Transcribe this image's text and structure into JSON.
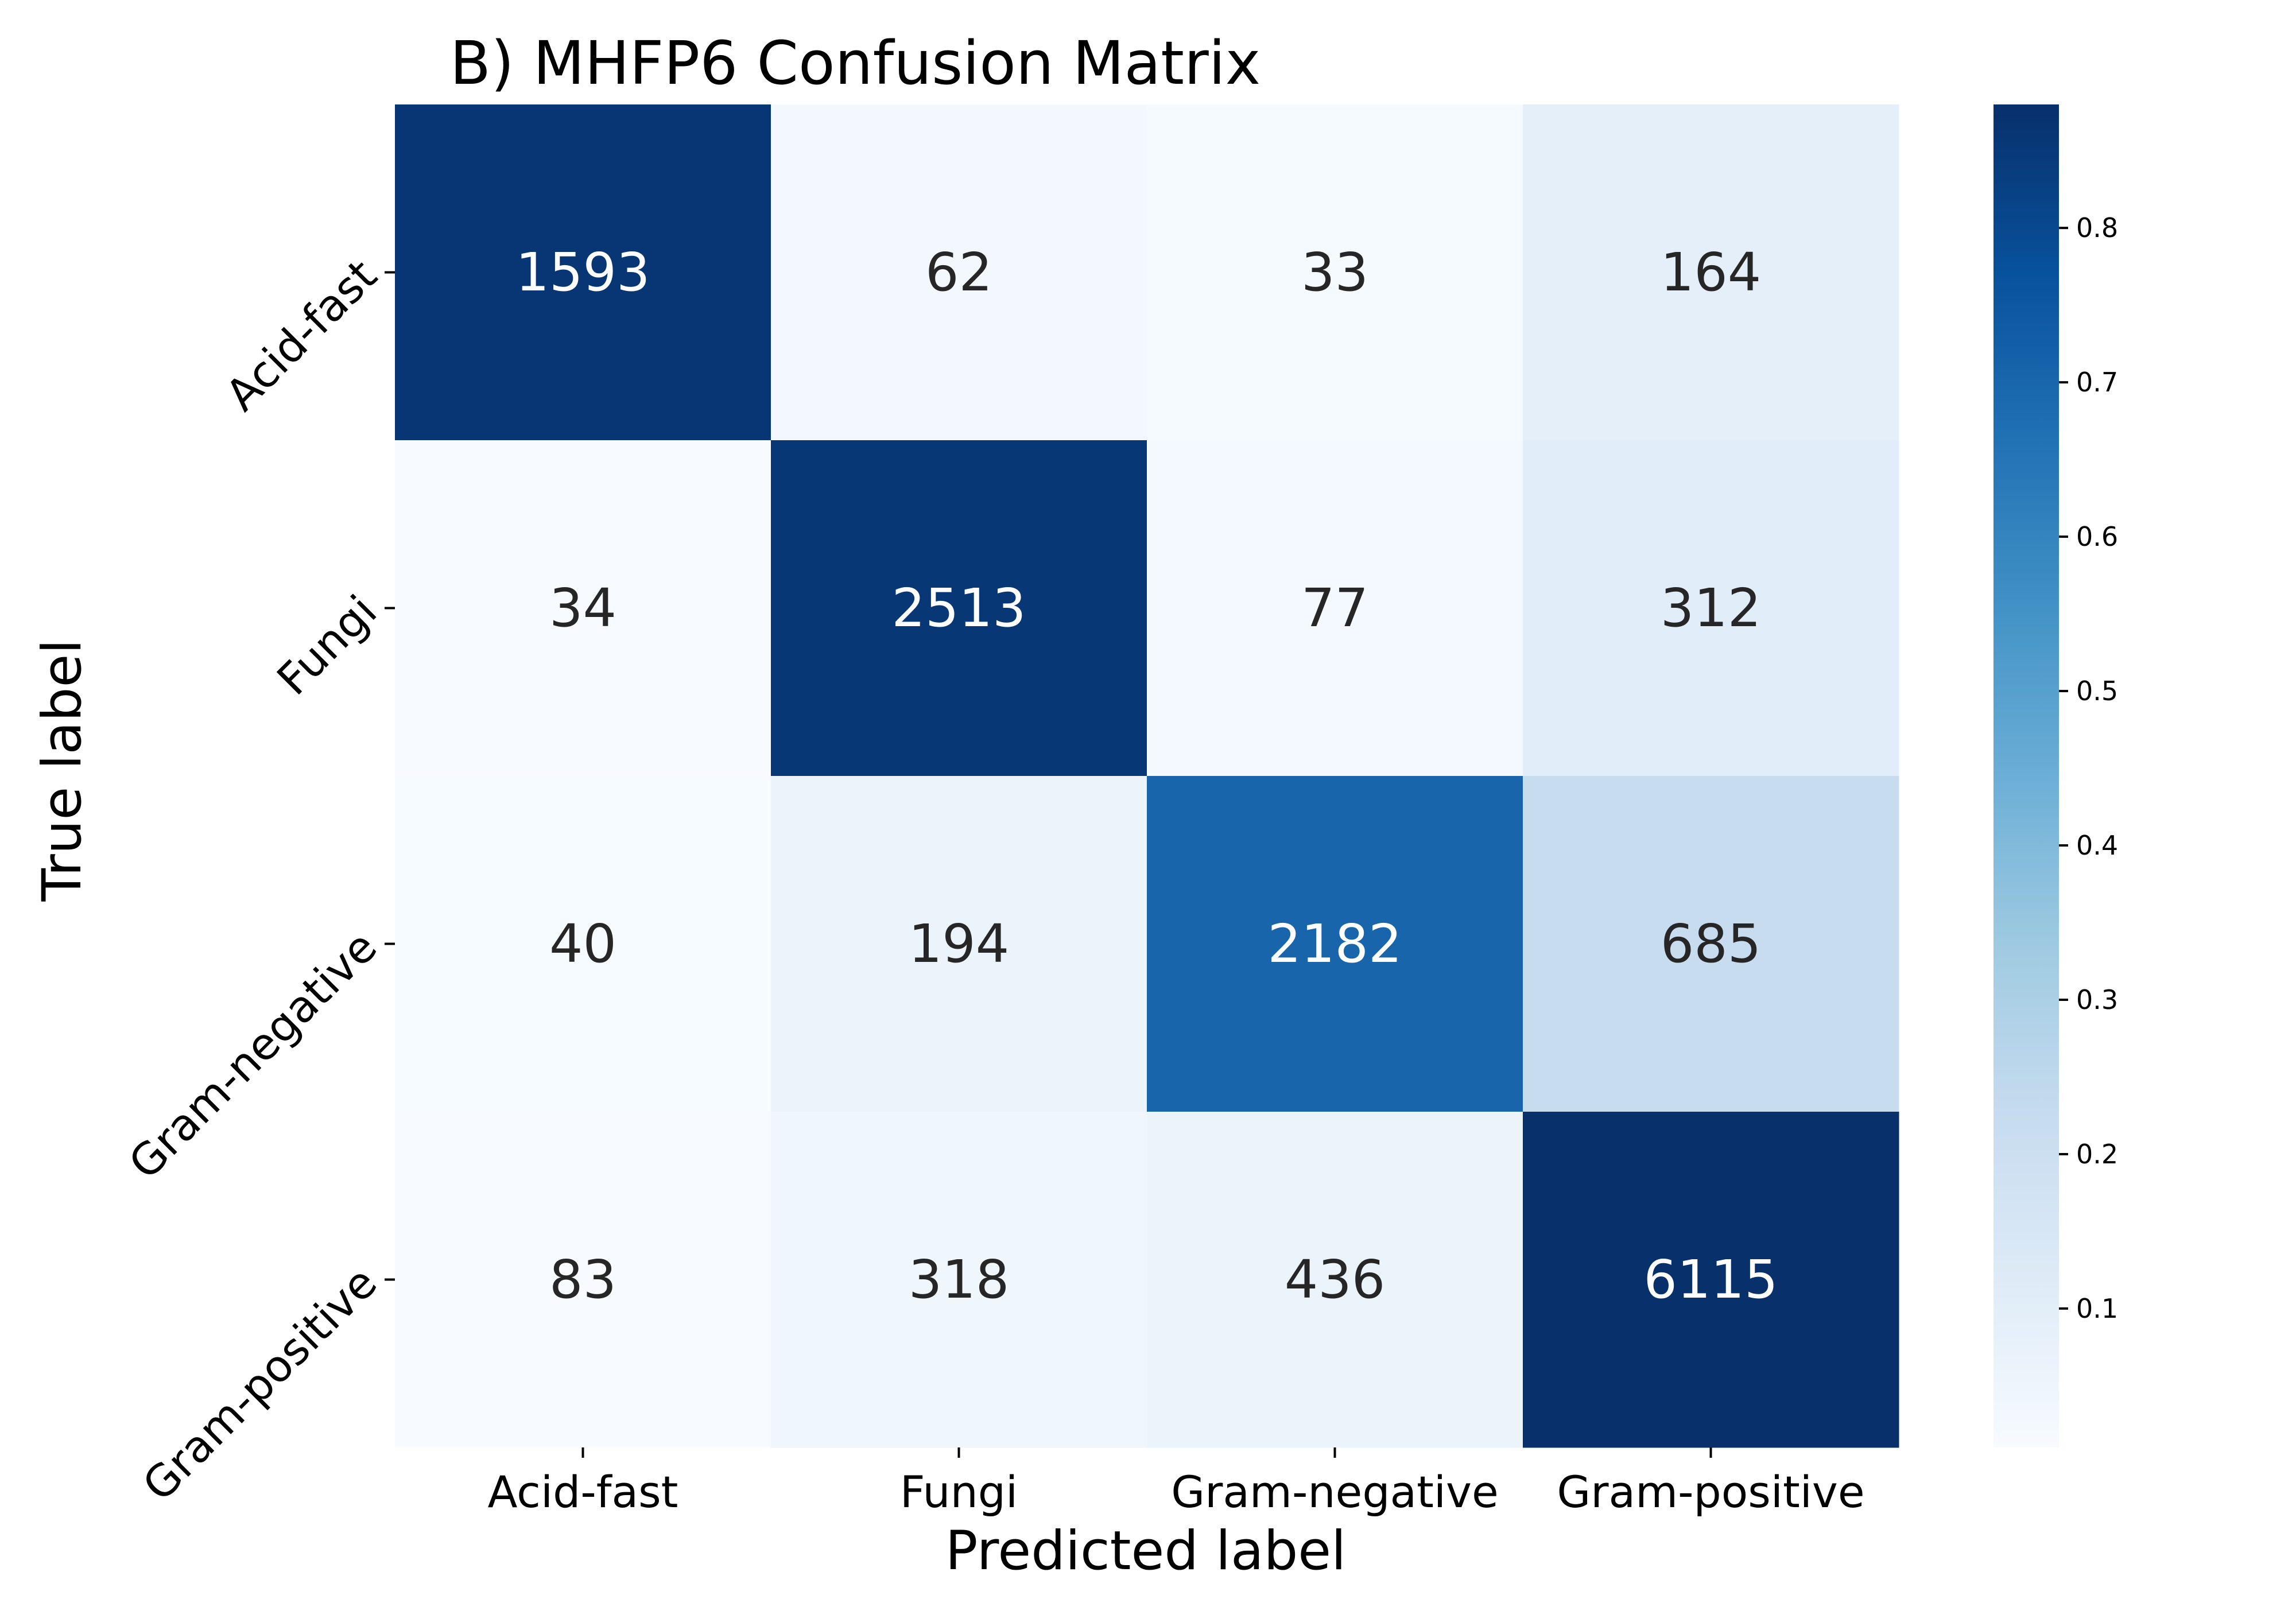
{
  "chart_data": {
    "type": "heatmap",
    "title": "B) MHFP6 Confusion Matrix",
    "xlabel": "Predicted label",
    "ylabel": "True label",
    "x_categories": [
      "Acid-fast",
      "Fungi",
      "Gram-negative",
      "Gram-positive"
    ],
    "y_categories": [
      "Acid-fast",
      "Fungi",
      "Gram-negative",
      "Gram-positive"
    ],
    "values": [
      [
        1593,
        62,
        33,
        164
      ],
      [
        34,
        2513,
        77,
        312
      ],
      [
        40,
        194,
        2182,
        685
      ],
      [
        83,
        318,
        436,
        6115
      ]
    ],
    "color_normalization": "row",
    "colormap": "Blues",
    "colorbar": {
      "range": [
        0.01,
        0.88
      ],
      "ticks": [
        "0.1",
        "0.2",
        "0.3",
        "0.4",
        "0.5",
        "0.6",
        "0.7",
        "0.8"
      ]
    }
  }
}
